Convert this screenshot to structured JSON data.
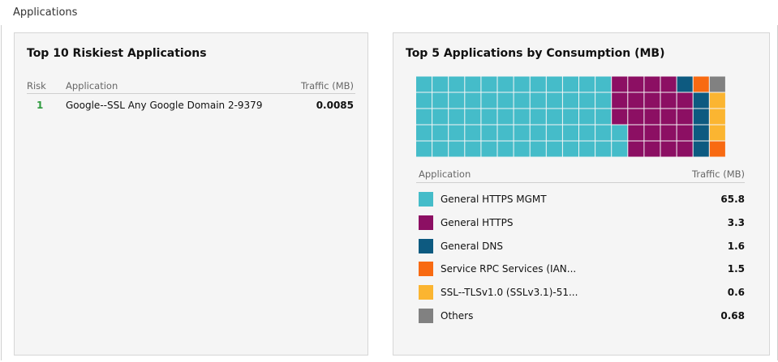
{
  "section_title": "Applications",
  "riskiest": {
    "title": "Top 10 Riskiest Applications",
    "columns": {
      "risk": "Risk",
      "application": "Application",
      "traffic": "Traffic (MB)"
    },
    "rows": [
      {
        "risk": "1",
        "application": "Google--SSL Any Google Domain 2-9379",
        "traffic": "0.0085"
      }
    ]
  },
  "consumption": {
    "title": "Top 5 Applications by Consumption (MB)",
    "columns": {
      "application": "Application",
      "traffic": "Traffic (MB)"
    },
    "legend": [
      {
        "label": "General HTTPS MGMT",
        "value": "65.8",
        "color": "#45bcc9"
      },
      {
        "label": "General HTTPS",
        "value": "3.3",
        "color": "#8c0f63"
      },
      {
        "label": "General DNS",
        "value": "1.6",
        "color": "#0d5a80"
      },
      {
        "label": "Service RPC Services (IAN...",
        "value": "1.5",
        "color": "#f86a12"
      },
      {
        "label": "SSL--TLSv1.0 (SSLv3.1)-51...",
        "value": "0.6",
        "color": "#fbb531"
      },
      {
        "label": "Others",
        "value": "0.68",
        "color": "#818181"
      }
    ],
    "waffle": {
      "rows": [
        [
          0,
          0,
          0,
          0,
          0,
          0,
          0,
          0,
          0,
          0,
          0,
          0,
          1,
          1,
          1,
          1,
          2,
          3,
          5
        ],
        [
          0,
          0,
          0,
          0,
          0,
          0,
          0,
          0,
          0,
          0,
          0,
          0,
          1,
          1,
          1,
          1,
          1,
          2,
          4
        ],
        [
          0,
          0,
          0,
          0,
          0,
          0,
          0,
          0,
          0,
          0,
          0,
          0,
          1,
          1,
          1,
          1,
          1,
          2,
          4
        ],
        [
          0,
          0,
          0,
          0,
          0,
          0,
          0,
          0,
          0,
          0,
          0,
          0,
          0,
          1,
          1,
          1,
          1,
          2,
          4
        ],
        [
          0,
          0,
          0,
          0,
          0,
          0,
          0,
          0,
          0,
          0,
          0,
          0,
          0,
          1,
          1,
          1,
          1,
          2,
          3
        ]
      ]
    }
  }
}
